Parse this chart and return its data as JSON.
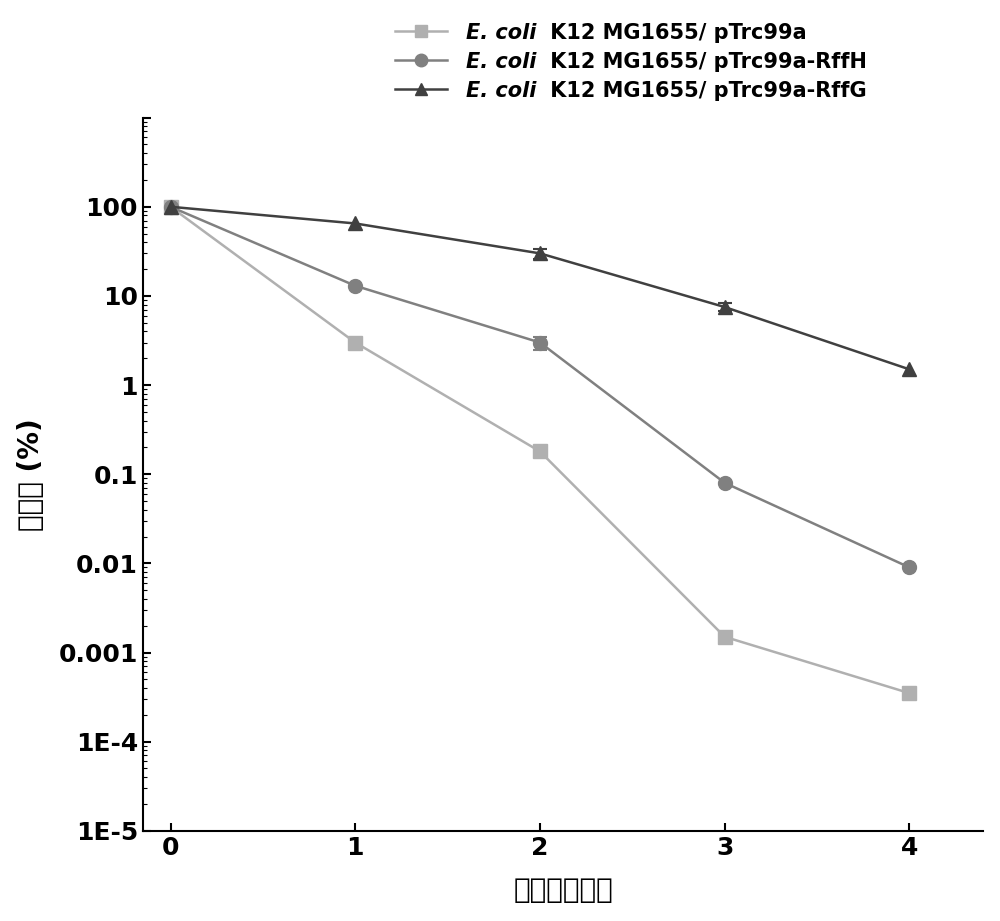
{
  "series": [
    {
      "label_italic": "E. coli",
      "label_rest": " K12 MG1655/ pTrc99a",
      "x": [
        0,
        1,
        2,
        3,
        4
      ],
      "y": [
        100,
        3.0,
        0.18,
        0.0015,
        0.00035
      ],
      "yerr_lo": [
        0,
        0,
        0,
        0.0002,
        0
      ],
      "yerr_hi": [
        0,
        0,
        0,
        0.0002,
        0
      ],
      "color": "#b0b0b0",
      "marker": "s",
      "markersize": 10,
      "linewidth": 1.8
    },
    {
      "label_italic": "E. coli",
      "label_rest": " K12 MG1655/ pTrc99a-RffH",
      "x": [
        0,
        1,
        2,
        3,
        4
      ],
      "y": [
        100,
        13.0,
        3.0,
        0.08,
        0.009
      ],
      "yerr_lo": [
        0,
        0,
        0.5,
        0,
        0
      ],
      "yerr_hi": [
        0,
        0,
        0.5,
        0,
        0
      ],
      "color": "#808080",
      "marker": "o",
      "markersize": 10,
      "linewidth": 1.8
    },
    {
      "label_italic": "E. coli",
      "label_rest": " K12 MG1655/ pTrc99a-RffG",
      "x": [
        0,
        1,
        2,
        3,
        4
      ],
      "y": [
        100,
        65.0,
        30.0,
        7.5,
        1.5
      ],
      "yerr_lo": [
        0,
        0,
        4.0,
        0.8,
        0
      ],
      "yerr_hi": [
        0,
        0,
        4.0,
        0.8,
        0
      ],
      "color": "#404040",
      "marker": "^",
      "markersize": 10,
      "linewidth": 1.8
    }
  ],
  "xlabel": "时间（小时）",
  "ylabel": "存活率 (%)",
  "ylim_log": [
    1e-05,
    1000
  ],
  "xlim": [
    -0.15,
    4.4
  ],
  "xticks": [
    0,
    1,
    2,
    3,
    4
  ],
  "ytick_labels": [
    "100",
    "10",
    "1",
    "0.1",
    "0.01",
    "0.001",
    "1E-4",
    "1E-5"
  ],
  "ytick_values": [
    100,
    10,
    1,
    0.1,
    0.01,
    0.001,
    0.0001,
    1e-05
  ],
  "background_color": "#ffffff",
  "legend_fontsize": 15,
  "axis_label_fontsize": 20,
  "tick_fontsize": 18,
  "figsize": [
    10,
    9.21
  ],
  "dpi": 100
}
